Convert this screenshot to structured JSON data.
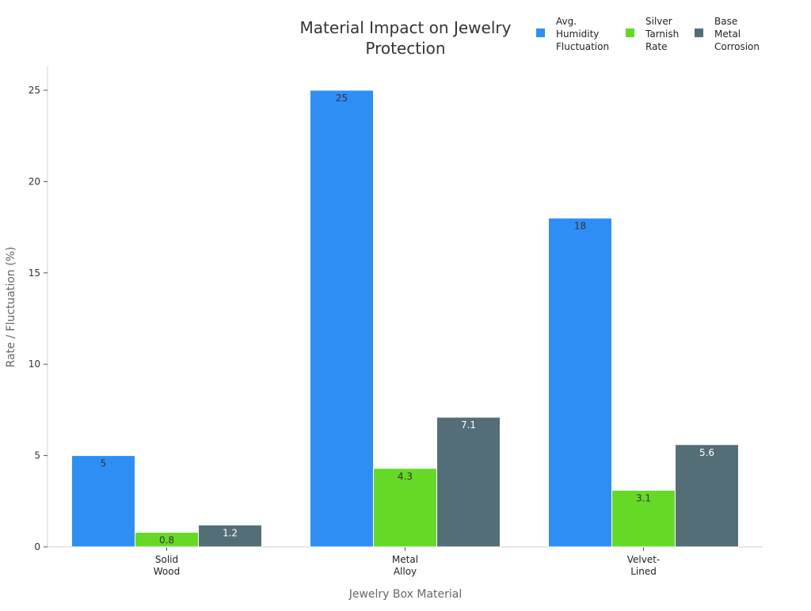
{
  "chart_data": {
    "type": "bar",
    "title": "Material Impact on Jewelry Protection",
    "title_lines": [
      "Material Impact on Jewelry",
      "Protection"
    ],
    "xlabel": "Jewelry Box Material",
    "ylabel": "Rate / Fluctuation (%)",
    "categories": [
      "Solid Wood",
      "Metal Alloy",
      "Velvet-Lined"
    ],
    "category_lines": [
      [
        "Solid",
        "Wood"
      ],
      [
        "Metal",
        "Alloy"
      ],
      [
        "Velvet-",
        "Lined"
      ]
    ],
    "ylim": [
      0,
      26.3
    ],
    "yticks": [
      0,
      5,
      10,
      15,
      20,
      25
    ],
    "grid": false,
    "legend_placement": "top-right",
    "series": [
      {
        "name": "Avg. Humidity Fluctuation",
        "name_lines": [
          "Avg.",
          "Humidity",
          "Fluctuation"
        ],
        "color": "#2d8ff5",
        "label_color": "#333333",
        "values": [
          5,
          25,
          18
        ]
      },
      {
        "name": "Silver Tarnish Rate",
        "name_lines": [
          "Silver",
          "Tarnish",
          "Rate"
        ],
        "color": "#66d926",
        "label_color": "#333333",
        "values": [
          0.8,
          4.3,
          3.1
        ]
      },
      {
        "name": "Base Metal Corrosion",
        "name_lines": [
          "Base",
          "Metal",
          "Corrosion"
        ],
        "color": "#546e78",
        "label_color": "#ffffff",
        "values": [
          1.2,
          7.1,
          5.6
        ]
      }
    ]
  }
}
